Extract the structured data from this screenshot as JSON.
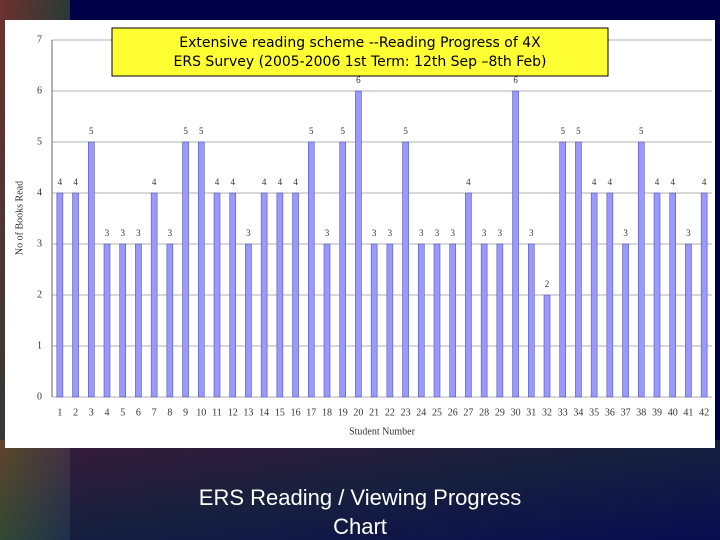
{
  "chart_data": {
    "type": "bar",
    "title_lines": [
      "Extensive reading scheme --Reading Progress of 4X",
      "ERS Survey (2005-2006 1st Term: 12th Sep –8th Feb)"
    ],
    "y_label": "No of Books Read",
    "x_label": "Student Number",
    "caption_lines": [
      "ERS Reading / Viewing Progress",
      "Chart"
    ],
    "categories": [
      "1",
      "2",
      "3",
      "4",
      "5",
      "6",
      "7",
      "8",
      "9",
      "10",
      "11",
      "12",
      "13",
      "14",
      "15",
      "16",
      "17",
      "18",
      "19",
      "20",
      "21",
      "22",
      "23",
      "24",
      "25",
      "26",
      "27",
      "28",
      "29",
      "30",
      "31",
      "32",
      "33",
      "34",
      "35",
      "36",
      "37",
      "38",
      "39",
      "40",
      "41",
      "42"
    ],
    "values": [
      4,
      4,
      5,
      3,
      3,
      3,
      4,
      3,
      5,
      5,
      4,
      4,
      3,
      4,
      4,
      4,
      5,
      3,
      5,
      6,
      3,
      3,
      5,
      3,
      3,
      3,
      4,
      3,
      3,
      6,
      3,
      2,
      5,
      5,
      4,
      4,
      3,
      5,
      4,
      4,
      3,
      4
    ],
    "color": "#9999ff",
    "ylim": [
      0,
      7
    ],
    "yticks": [
      0,
      1,
      2,
      3,
      4,
      5,
      6,
      7
    ],
    "grid": true
  }
}
